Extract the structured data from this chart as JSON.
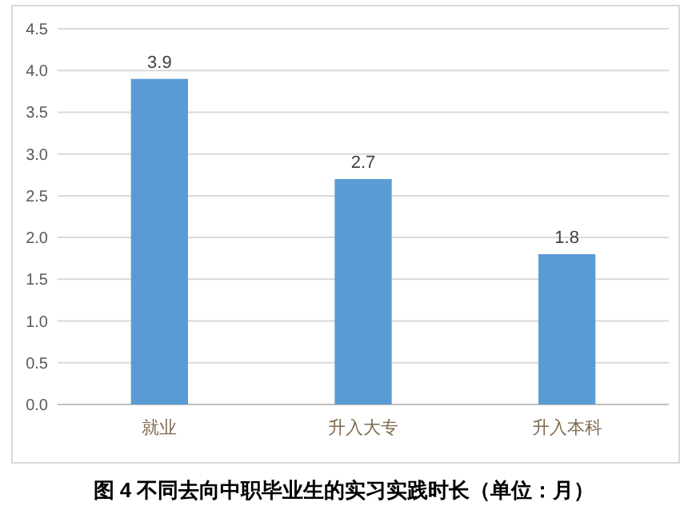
{
  "chart_data": {
    "type": "bar",
    "title": "图 4 不同去向中职毕业生的实习实践时长（单位：月）",
    "categories": [
      "就业",
      "升入大专",
      "升入本科"
    ],
    "values": [
      3.9,
      2.7,
      1.8
    ],
    "color": "#5b9bd5",
    "ylim": [
      0,
      4.5
    ],
    "yticks": [
      {
        "value": 0,
        "label": "0.0"
      },
      {
        "value": 0.5,
        "label": "0.5"
      },
      {
        "value": 1,
        "label": "1.0"
      },
      {
        "value": 1.5,
        "label": "1.5"
      },
      {
        "value": 2,
        "label": "2.0"
      },
      {
        "value": 2.5,
        "label": "2.5"
      },
      {
        "value": 3,
        "label": "3.0"
      },
      {
        "value": 3.5,
        "label": "3.5"
      },
      {
        "value": 4,
        "label": "4.0"
      },
      {
        "value": 4.5,
        "label": "4.5"
      }
    ],
    "grid": "y",
    "data_labels": true
  }
}
